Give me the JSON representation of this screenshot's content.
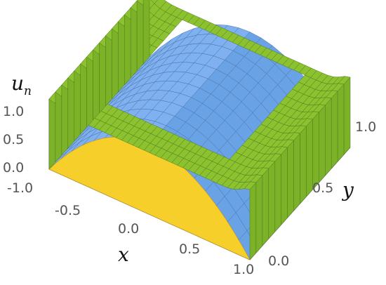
{
  "chart_data": {
    "type": "surface3d",
    "title": "",
    "xlabel": "x",
    "ylabel": "y",
    "zlabel_base": "u",
    "zlabel_sub": "n",
    "xlim": [
      -1.0,
      1.0
    ],
    "ylim": [
      0.0,
      1.0
    ],
    "zlim": [
      0.0,
      1.0
    ],
    "x_ticks": [
      "-1.0",
      "-0.5",
      "0.0",
      "0.5",
      "1.0"
    ],
    "y_ticks": [
      "0.0",
      "0.5",
      "1.0"
    ],
    "z_ticks": [
      "0.0",
      "0.5",
      "1.0"
    ],
    "series": [
      {
        "key": "exact",
        "formula": "u(x,y) = 1 - x^2",
        "grid": {
          "nx": 18,
          "ny": 12
        },
        "colors": {
          "top": "#7fb0f0",
          "side_low": "#f0a535",
          "side_high": "#f7cf2a",
          "mesh": "#4a72a8"
        }
      },
      {
        "key": "approximation",
        "description_values": {
          "boundary_level": 1.0,
          "interior_level": 0.88,
          "ridge_width_x": 0.12
        },
        "grid": {
          "nx": 36,
          "ny": 16
        },
        "colors": {
          "fill": "#8cc230",
          "mesh": "#4d7a1a"
        }
      }
    ],
    "grid_lines": false,
    "legend": "none"
  }
}
